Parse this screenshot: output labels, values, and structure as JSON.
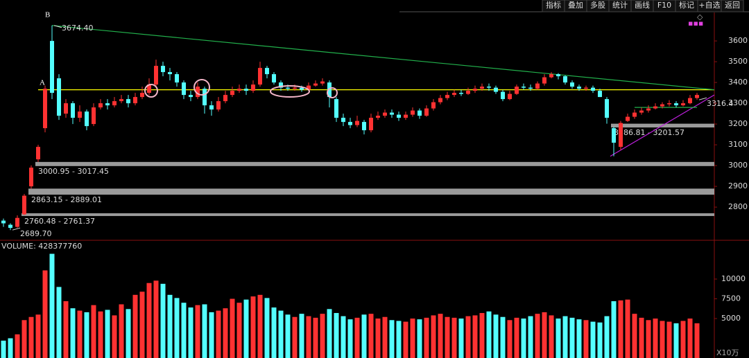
{
  "toolbar": [
    "指标",
    "叠加",
    "多股",
    "统计",
    "画线",
    "F10",
    "标记",
    "+自选",
    "返回"
  ],
  "chart_data": {
    "type": "candlestick",
    "up_color": "#ff3232",
    "down_color": "#54ffff",
    "ylim": [
      2647,
      3737
    ],
    "yticks": [
      2800,
      2900,
      3000,
      3100,
      3200,
      3300,
      3400,
      3500,
      3600
    ],
    "open": [
      2735,
      2715,
      2705,
      2765,
      2900,
      3030,
      3180,
      3600,
      3420,
      3250,
      3300,
      3230,
      3260,
      3200,
      3280,
      3300,
      3290,
      3310,
      3320,
      3300,
      3330,
      3350,
      3390,
      3480,
      3450,
      3440,
      3400,
      3340,
      3330,
      3370,
      3290,
      3270,
      3310,
      3340,
      3360,
      3370,
      3360,
      3390,
      3470,
      3440,
      3400,
      3375,
      3370,
      3375,
      3365,
      3385,
      3395,
      3400,
      3320,
      3230,
      3210,
      3195,
      3210,
      3170,
      3230,
      3240,
      3255,
      3245,
      3230,
      3245,
      3265,
      3240,
      3275,
      3305,
      3325,
      3340,
      3350,
      3345,
      3360,
      3370,
      3380,
      3375,
      3355,
      3320,
      3345,
      3380,
      3375,
      3370,
      3395,
      3425,
      3440,
      3430,
      3400,
      3380,
      3370,
      3375,
      3360,
      3320,
      3180,
      3090,
      3215,
      3235,
      3255,
      3265,
      3275,
      3285,
      3295,
      3300,
      3290,
      3300,
      3325
    ],
    "high": [
      2745,
      2722,
      2760.48,
      2863.15,
      3000.95,
      3100,
      3385,
      3674.4,
      3440,
      3320,
      3310,
      3290,
      3270,
      3300,
      3320,
      3320,
      3330,
      3340,
      3340,
      3350,
      3380,
      3420,
      3510,
      3500,
      3470,
      3450,
      3410,
      3360,
      3400,
      3380,
      3310,
      3330,
      3360,
      3380,
      3390,
      3390,
      3410,
      3500,
      3480,
      3450,
      3410,
      3390,
      3390,
      3385,
      3400,
      3410,
      3420,
      3410,
      3330,
      3250,
      3230,
      3240,
      3220,
      3250,
      3260,
      3270,
      3270,
      3260,
      3260,
      3280,
      3275,
      3290,
      3320,
      3340,
      3355,
      3365,
      3365,
      3375,
      3385,
      3395,
      3395,
      3385,
      3365,
      3360,
      3390,
      3395,
      3390,
      3405,
      3440,
      3450,
      3445,
      3435,
      3410,
      3390,
      3385,
      3385,
      3370,
      3330,
      3186.81,
      3215,
      3250,
      3270,
      3280,
      3290,
      3300,
      3305,
      3315,
      3310,
      3315,
      3340,
      3350
    ],
    "low": [
      2705,
      2689.7,
      2700,
      2761.37,
      2889.01,
      3017.45,
      3160,
      3320,
      3220,
      3230,
      3200,
      3210,
      3170,
      3190,
      3270,
      3270,
      3280,
      3300,
      3280,
      3290,
      3320,
      3340,
      3380,
      3430,
      3410,
      3380,
      3320,
      3310,
      3320,
      3250,
      3240,
      3260,
      3300,
      3330,
      3350,
      3340,
      3350,
      3380,
      3420,
      3390,
      3360,
      3360,
      3360,
      3355,
      3360,
      3380,
      3385,
      3280,
      3210,
      3190,
      3180,
      3185,
      3150,
      3160,
      3220,
      3230,
      3230,
      3215,
      3220,
      3235,
      3225,
      3235,
      3265,
      3295,
      3315,
      3330,
      3335,
      3340,
      3350,
      3360,
      3360,
      3345,
      3310,
      3315,
      3340,
      3365,
      3360,
      3365,
      3385,
      3420,
      3415,
      3390,
      3370,
      3360,
      3360,
      3350,
      3330,
      3201.57,
      3045,
      3075,
      3210,
      3225,
      3245,
      3255,
      3270,
      3275,
      3285,
      3280,
      3285,
      3295,
      3316.4
    ],
    "close": [
      2722,
      2700,
      2748,
      2855,
      2990,
      3090,
      3370,
      3350,
      3240,
      3300,
      3230,
      3260,
      3190,
      3280,
      3300,
      3290,
      3310,
      3320,
      3300,
      3330,
      3350,
      3390,
      3480,
      3450,
      3440,
      3400,
      3340,
      3330,
      3380,
      3290,
      3270,
      3310,
      3340,
      3360,
      3370,
      3360,
      3390,
      3470,
      3440,
      3400,
      3375,
      3370,
      3375,
      3365,
      3385,
      3395,
      3405,
      3330,
      3230,
      3210,
      3195,
      3215,
      3170,
      3230,
      3240,
      3255,
      3245,
      3230,
      3245,
      3265,
      3240,
      3275,
      3305,
      3325,
      3340,
      3350,
      3345,
      3360,
      3370,
      3380,
      3375,
      3355,
      3320,
      3345,
      3380,
      3375,
      3370,
      3395,
      3425,
      3440,
      3430,
      3400,
      3380,
      3370,
      3375,
      3360,
      3330,
      3230,
      3110,
      3205,
      3235,
      3255,
      3265,
      3275,
      3285,
      3295,
      3300,
      3290,
      3300,
      3325,
      3340
    ],
    "gaps": [
      {
        "label": "2760.48 - 2761.37",
        "low": 2760.48,
        "high": 2761.37
      },
      {
        "label": "2863.15 - 2889.01",
        "low": 2863.15,
        "high": 2889.01
      },
      {
        "label": "3000.95 - 3017.45",
        "low": 3000.95,
        "high": 3017.45
      },
      {
        "label": "3186.81 - 3201.57",
        "low": 3186.81,
        "high": 3201.57
      }
    ],
    "price_labels": [
      {
        "value": 3674.4,
        "label": "3674.40"
      },
      {
        "value": 2689.7,
        "label": "2689.70"
      },
      3316.4
    ],
    "lines": [
      {
        "color": "#ffff00",
        "start": [
          5,
          3365
        ],
        "end": [
          102.5,
          3365
        ]
      },
      {
        "color": "#22b14c",
        "start": [
          7,
          3674.4
        ],
        "end": [
          102.5,
          3365
        ]
      },
      {
        "color": "#c020e0",
        "start": [
          87.5,
          3045
        ],
        "end": [
          102.5,
          3340
        ]
      },
      {
        "color": "#22b14c",
        "start": [
          91,
          3280
        ],
        "end": [
          100,
          3280
        ]
      }
    ],
    "markers": [
      "A",
      "B"
    ],
    "volume_title": "VOLUME: 428377760",
    "volume_unit": "X10万",
    "volume_lim": [
      0,
      14650
    ],
    "volume_ticks": [
      5000,
      7500,
      10000
    ],
    "volume": [
      2200,
      2500,
      3000,
      4800,
      5200,
      5500,
      11100,
      13200,
      9000,
      7200,
      6300,
      6000,
      5800,
      6700,
      5900,
      6100,
      5400,
      6800,
      6200,
      8000,
      8400,
      9500,
      9800,
      9400,
      8000,
      7600,
      7000,
      6400,
      6700,
      6800,
      5800,
      6000,
      6300,
      7500,
      7000,
      7400,
      7800,
      8000,
      7600,
      6400,
      6000,
      5500,
      5200,
      5600,
      5300,
      5100,
      5600,
      6200,
      5700,
      5300,
      4900,
      5100,
      5500,
      5600,
      5000,
      5200,
      4800,
      4700,
      4600,
      5000,
      4900,
      5100,
      5400,
      5600,
      5200,
      5100,
      5000,
      5300,
      5400,
      5700,
      5900,
      5500,
      5200,
      4800,
      5100,
      5000,
      5300,
      5600,
      5800,
      5400,
      5000,
      5300,
      5100,
      4900,
      4800,
      4600,
      4500,
      5300,
      7200,
      7300,
      7400,
      5600,
      5100,
      4800,
      5000,
      4700,
      4600,
      4400,
      4700,
      5000,
      4400
    ]
  }
}
